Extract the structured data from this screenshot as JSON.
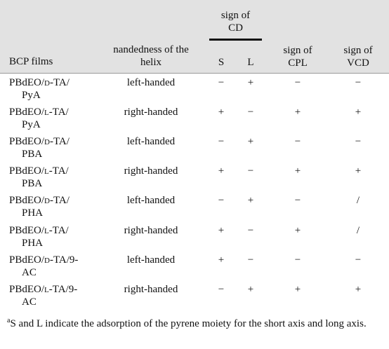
{
  "headers": {
    "films": "BCP films",
    "handedness_l1": "nandedness of the",
    "handedness_l2": "helix",
    "cd_l1": "sign of",
    "cd_l2": "CD",
    "s": "S",
    "l": "L",
    "cpl_l1": "sign of",
    "cpl_l2": "CPL",
    "vcd_l1": "sign of",
    "vcd_l2": "VCD"
  },
  "rows": [
    {
      "film_pre": "PBdEO/",
      "film_sc": "d",
      "film_post": "-TA/",
      "film_l2": "PyA",
      "hand": "left-handed",
      "s": "−",
      "l": "+",
      "cpl": "−",
      "vcd": "−"
    },
    {
      "film_pre": "PBdEO/",
      "film_sc": "l",
      "film_post": "-TA/",
      "film_l2": "PyA",
      "hand": "right-handed",
      "s": "+",
      "l": "−",
      "cpl": "+",
      "vcd": "+"
    },
    {
      "film_pre": "PBdEO/",
      "film_sc": "d",
      "film_post": "-TA/",
      "film_l2": "PBA",
      "hand": "left-handed",
      "s": "−",
      "l": "+",
      "cpl": "−",
      "vcd": "−"
    },
    {
      "film_pre": "PBdEO/",
      "film_sc": "l",
      "film_post": "-TA/",
      "film_l2": "PBA",
      "hand": "right-handed",
      "s": "+",
      "l": "−",
      "cpl": "+",
      "vcd": "+"
    },
    {
      "film_pre": "PBdEO/",
      "film_sc": "d",
      "film_post": "-TA/",
      "film_l2": "PHA",
      "hand": "left-handed",
      "s": "−",
      "l": "+",
      "cpl": "−",
      "vcd": "/"
    },
    {
      "film_pre": "PBdEO/",
      "film_sc": "l",
      "film_post": "-TA/",
      "film_l2": "PHA",
      "hand": "right-handed",
      "s": "+",
      "l": "−",
      "cpl": "+",
      "vcd": "/"
    },
    {
      "film_pre": "PBdEO/",
      "film_sc": "d",
      "film_post": "-TA/9-",
      "film_l2": "AC",
      "hand": "left-handed",
      "s": "+",
      "l": "−",
      "cpl": "−",
      "vcd": "−"
    },
    {
      "film_pre": "PBdEO/",
      "film_sc": "l",
      "film_post": "-TA/9-",
      "film_l2": "AC",
      "hand": "right-handed",
      "s": "−",
      "l": "+",
      "cpl": "+",
      "vcd": "+"
    }
  ],
  "footnote": {
    "mark": "a",
    "text": "S and L indicate the adsorption of the pyrene moiety for the short axis and long axis."
  }
}
